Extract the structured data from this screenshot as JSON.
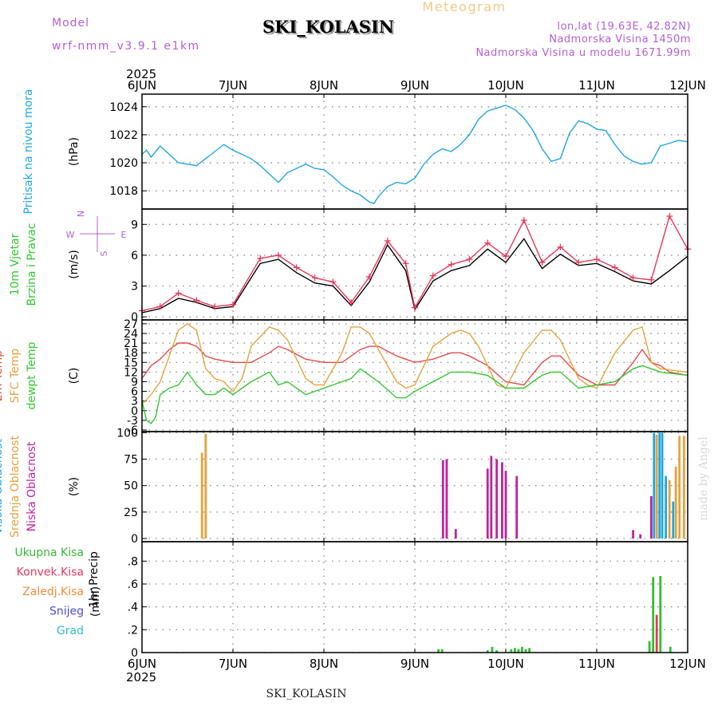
{
  "header": {
    "model_label": "Model",
    "model_name": "wrf-nmm_v3.9.1 e1km",
    "station": "SKI_KOLASIN",
    "meteogram_label": "Meteogram",
    "lonlat": "lon,lat (19.63E, 42.82N)",
    "altitude": "Nadmorska Visina 1450m",
    "model_altitude": "Nadmorska Visina u modelu 1671.99m"
  },
  "footer": {
    "station": "SKI_KOLASIN",
    "credit": "made by Angel"
  },
  "colors": {
    "pressure": "#1ea7e0",
    "wind_speed": "#000000",
    "gust": "#e8385a",
    "temp_2m": "#e84a4a",
    "temp_sfc": "#e6a23c",
    "dewpoint": "#2fc92f",
    "cloud_high": "#1ea7e0",
    "cloud_mid": "#e6a23c",
    "cloud_low": "#c0229c",
    "precip_total": "#33bb33",
    "precip_conv": "#e8385a",
    "grid": "#888888"
  },
  "chart_data": {
    "type": "line",
    "time_axis": {
      "year": "2025",
      "labels": [
        "6JUN",
        "7JUN",
        "8JUN",
        "9JUN",
        "10JUN",
        "11JUN",
        "12JUN"
      ],
      "start_day": 6,
      "end_day": 12
    },
    "panels": [
      {
        "id": "pressure",
        "ylabel": [
          "Pritisak na nivou mora"
        ],
        "ylabel_colors": [
          "#1ea7e0"
        ],
        "unit": "(hPa)",
        "ylim": [
          1016.7,
          1024.9
        ],
        "yticks": [
          1018,
          1020,
          1022,
          1024
        ],
        "series": [
          {
            "color_key": "pressure",
            "x": [
              6.0,
              6.05,
              6.1,
              6.2,
              6.3,
              6.4,
              6.5,
              6.6,
              6.7,
              6.8,
              6.9,
              7.0,
              7.1,
              7.2,
              7.3,
              7.4,
              7.5,
              7.6,
              7.7,
              7.8,
              7.9,
              8.0,
              8.1,
              8.2,
              8.3,
              8.4,
              8.5,
              8.55,
              8.6,
              8.7,
              8.8,
              8.9,
              9.0,
              9.1,
              9.2,
              9.3,
              9.4,
              9.5,
              9.6,
              9.7,
              9.8,
              9.9,
              10.0,
              10.1,
              10.2,
              10.3,
              10.4,
              10.5,
              10.6,
              10.7,
              10.8,
              10.9,
              11.0,
              11.1,
              11.2,
              11.3,
              11.4,
              11.5,
              11.6,
              11.7,
              11.8,
              11.9,
              12.0
            ],
            "values": [
              1020.6,
              1020.9,
              1020.4,
              1021.2,
              1020.6,
              1020.0,
              1019.9,
              1019.8,
              1020.3,
              1020.8,
              1021.3,
              1020.9,
              1020.6,
              1020.3,
              1019.8,
              1019.2,
              1018.6,
              1019.3,
              1019.6,
              1019.9,
              1019.6,
              1019.5,
              1019.0,
              1018.4,
              1018.0,
              1017.7,
              1017.2,
              1017.1,
              1017.6,
              1018.3,
              1018.6,
              1018.5,
              1018.9,
              1019.9,
              1020.6,
              1021.0,
              1020.8,
              1021.3,
              1022.0,
              1023.1,
              1023.7,
              1023.9,
              1024.1,
              1023.8,
              1023.2,
              1022.3,
              1021.0,
              1020.1,
              1020.3,
              1022.1,
              1023.0,
              1022.8,
              1022.4,
              1022.3,
              1021.3,
              1020.5,
              1020.1,
              1019.9,
              1020.0,
              1021.2,
              1021.4,
              1021.6,
              1021.5
            ]
          }
        ]
      },
      {
        "id": "wind",
        "ylabel": [
          "10m Vjetar",
          "Brzina i Pravac"
        ],
        "ylabel_colors": [
          "#2fc92f",
          "#2fc92f"
        ],
        "unit": "(m/s)",
        "direction_key": [
          "N",
          "W",
          "E",
          "S"
        ],
        "ylim": [
          -0.3,
          10.5
        ],
        "yticks": [
          0,
          3,
          6,
          9
        ],
        "series": [
          {
            "color_key": "wind_speed",
            "x": [
              6.0,
              6.2,
              6.4,
              6.6,
              6.8,
              7.0,
              7.3,
              7.5,
              7.7,
              7.9,
              8.1,
              8.3,
              8.5,
              8.7,
              8.9,
              9.0,
              9.2,
              9.4,
              9.6,
              9.8,
              10.0,
              10.2,
              10.4,
              10.6,
              10.8,
              11.0,
              11.2,
              11.4,
              11.6,
              11.8,
              12.0
            ],
            "values": [
              0.4,
              0.8,
              1.8,
              1.4,
              0.8,
              1.0,
              5.2,
              5.6,
              4.3,
              3.3,
              3.0,
              1.1,
              3.4,
              7.0,
              4.5,
              0.7,
              3.5,
              4.5,
              5.0,
              6.6,
              5.3,
              7.6,
              4.7,
              6.1,
              5.0,
              5.2,
              4.4,
              3.5,
              3.2,
              4.5,
              5.9
            ]
          },
          {
            "color_key": "gust",
            "x": [
              6.0,
              6.2,
              6.4,
              6.6,
              6.8,
              7.0,
              7.3,
              7.5,
              7.7,
              7.9,
              8.1,
              8.3,
              8.5,
              8.7,
              8.9,
              9.0,
              9.2,
              9.4,
              9.6,
              9.8,
              10.0,
              10.2,
              10.4,
              10.6,
              10.8,
              11.0,
              11.2,
              11.4,
              11.6,
              11.8,
              12.0
            ],
            "values": [
              0.6,
              1.0,
              2.3,
              1.6,
              1.0,
              1.2,
              5.7,
              6.0,
              4.8,
              3.8,
              3.4,
              1.4,
              3.9,
              7.4,
              5.2,
              0.9,
              4.0,
              5.1,
              5.6,
              7.2,
              5.9,
              9.4,
              5.3,
              6.8,
              5.3,
              5.6,
              4.8,
              3.8,
              3.6,
              9.8,
              6.6
            ]
          }
        ]
      },
      {
        "id": "temperature",
        "ylabel": [
          "2m Temp",
          "SFC Temp",
          "dewpt Temp"
        ],
        "ylabel_colors": [
          "#e84a4a",
          "#e6a23c",
          "#2fc92f"
        ],
        "unit": "(C)",
        "ylim": [
          -6.5,
          28.2
        ],
        "yticks": [
          -6,
          -3,
          0,
          3,
          6,
          9,
          12,
          15,
          18,
          21,
          24,
          27
        ],
        "series": [
          {
            "color_key": "temp_2m",
            "x": [
              6.0,
              6.1,
              6.2,
              6.3,
              6.4,
              6.5,
              6.6,
              6.7,
              6.8,
              7.0,
              7.2,
              7.4,
              7.5,
              7.6,
              7.8,
              8.0,
              8.2,
              8.4,
              8.5,
              8.6,
              8.8,
              9.0,
              9.2,
              9.4,
              9.5,
              9.6,
              9.8,
              10.0,
              10.2,
              10.4,
              10.5,
              10.6,
              10.8,
              11.0,
              11.2,
              11.4,
              11.5,
              11.6,
              11.7,
              11.8,
              12.0
            ],
            "values": [
              10,
              14,
              16,
              19,
              21,
              21,
              20,
              17,
              16,
              15,
              15,
              18,
              20,
              19,
              16,
              15,
              15,
              19,
              20,
              20,
              17,
              15,
              16,
              18,
              18,
              17,
              14,
              9,
              8,
              15,
              17,
              17,
              11,
              8,
              8,
              15,
              19,
              15,
              14,
              12,
              11
            ]
          },
          {
            "color_key": "temp_sfc",
            "x": [
              6.0,
              6.1,
              6.2,
              6.3,
              6.4,
              6.5,
              6.6,
              6.7,
              6.8,
              6.9,
              7.0,
              7.1,
              7.2,
              7.4,
              7.5,
              7.6,
              7.8,
              7.9,
              8.0,
              8.2,
              8.3,
              8.4,
              8.5,
              8.6,
              8.8,
              8.9,
              9.0,
              9.2,
              9.4,
              9.5,
              9.6,
              9.7,
              9.9,
              10.0,
              10.2,
              10.4,
              10.5,
              10.6,
              10.8,
              10.9,
              11.0,
              11.2,
              11.4,
              11.5,
              11.6,
              11.7,
              12.0
            ],
            "values": [
              2,
              5,
              9,
              17,
              25,
              27,
              25,
              13,
              10,
              9,
              6,
              10,
              20,
              26,
              25,
              22,
              10,
              8,
              8,
              18,
              26,
              26,
              24,
              19,
              9,
              7,
              8,
              20,
              24,
              25,
              24,
              20,
              8,
              7,
              18,
              25,
              25,
              22,
              10,
              8,
              7,
              18,
              25,
              26,
              15,
              13,
              12
            ]
          },
          {
            "color_key": "dewpoint",
            "x": [
              6.0,
              6.05,
              6.1,
              6.15,
              6.2,
              6.3,
              6.4,
              6.5,
              6.6,
              6.7,
              6.8,
              6.9,
              7.0,
              7.2,
              7.4,
              7.5,
              7.6,
              7.8,
              8.0,
              8.2,
              8.3,
              8.4,
              8.5,
              8.6,
              8.8,
              8.9,
              9.0,
              9.2,
              9.4,
              9.5,
              9.6,
              9.8,
              10.0,
              10.2,
              10.4,
              10.5,
              10.6,
              10.8,
              11.0,
              11.2,
              11.4,
              11.5,
              11.6,
              11.7,
              12.0
            ],
            "values": [
              3,
              -3,
              -4,
              -2,
              5,
              7,
              8,
              12,
              8,
              5,
              5,
              7,
              5,
              9,
              12,
              8,
              9,
              5,
              7,
              9,
              10,
              13,
              11,
              9,
              4,
              4,
              6,
              9,
              12,
              12,
              12,
              11,
              7,
              7,
              11,
              12,
              12,
              7,
              8,
              9,
              13,
              14,
              13,
              12,
              11
            ]
          }
        ]
      },
      {
        "id": "clouds",
        "ylabel": [
          "Visoka Oblacnost",
          "Srednja Oblacnost",
          "Niska Oblacnost"
        ],
        "ylabel_colors": [
          "#1ea7e0",
          "#e6a23c",
          "#c0229c"
        ],
        "unit": "(%)",
        "ylim": [
          -3,
          101
        ],
        "yticks": [
          0,
          25,
          50,
          75,
          100
        ],
        "bars": [
          {
            "x": 6.66,
            "value": 81,
            "color_key": "cloud_mid"
          },
          {
            "x": 6.7,
            "value": 99,
            "color_key": "cloud_mid"
          },
          {
            "x": 9.31,
            "value": 74,
            "color_key": "cloud_low"
          },
          {
            "x": 9.35,
            "value": 75,
            "color_key": "cloud_low"
          },
          {
            "x": 9.45,
            "value": 9,
            "color_key": "cloud_low"
          },
          {
            "x": 9.8,
            "value": 66,
            "color_key": "cloud_low"
          },
          {
            "x": 9.84,
            "value": 78,
            "color_key": "cloud_low"
          },
          {
            "x": 9.9,
            "value": 75,
            "color_key": "cloud_low"
          },
          {
            "x": 9.96,
            "value": 72,
            "color_key": "cloud_low"
          },
          {
            "x": 10.0,
            "value": 64,
            "color_key": "cloud_low"
          },
          {
            "x": 10.12,
            "value": 59,
            "color_key": "cloud_low"
          },
          {
            "x": 11.4,
            "value": 8,
            "color_key": "cloud_low"
          },
          {
            "x": 11.48,
            "value": 4,
            "color_key": "cloud_low"
          },
          {
            "x": 11.6,
            "value": 40,
            "color_key": "cloud_low"
          },
          {
            "x": 11.63,
            "value": 100,
            "color_key": "cloud_high"
          },
          {
            "x": 11.66,
            "value": 98,
            "color_key": "cloud_mid"
          },
          {
            "x": 11.69,
            "value": 100,
            "color_key": "cloud_high"
          },
          {
            "x": 11.72,
            "value": 100,
            "color_key": "cloud_high"
          },
          {
            "x": 11.76,
            "value": 59,
            "color_key": "cloud_high"
          },
          {
            "x": 11.8,
            "value": 55,
            "color_key": "cloud_mid"
          },
          {
            "x": 11.84,
            "value": 35,
            "color_key": "cloud_high"
          },
          {
            "x": 11.87,
            "value": 68,
            "color_key": "cloud_mid"
          },
          {
            "x": 11.91,
            "value": 97,
            "color_key": "cloud_mid"
          },
          {
            "x": 11.96,
            "value": 97,
            "color_key": "cloud_mid"
          }
        ]
      },
      {
        "id": "precip",
        "ylabel": [
          "1hr Precip"
        ],
        "ylabel_colors": [
          "#000000"
        ],
        "unit": "(mm)",
        "ylim": [
          0,
          0.97
        ],
        "yticks": [
          0,
          0.2,
          0.4,
          0.6,
          0.8
        ],
        "legend": [
          {
            "label": "Ukupna Kisa",
            "color_key": "precip_total"
          },
          {
            "label": "Konvek.Kisa",
            "color_key": "precip_conv"
          },
          {
            "label": "Zaledj.Kisa",
            "color": "#f58a3a"
          },
          {
            "label": "Snijeg",
            "color": "#4b4bd6"
          },
          {
            "label": "Grad",
            "color": "#2fc0c0"
          }
        ],
        "bars": [
          {
            "x": 9.26,
            "value": 0.03,
            "color_key": "precip_total"
          },
          {
            "x": 9.3,
            "value": 0.03,
            "color_key": "precip_total"
          },
          {
            "x": 9.8,
            "value": 0.02,
            "color_key": "precip_total"
          },
          {
            "x": 9.85,
            "value": 0.05,
            "color_key": "precip_total"
          },
          {
            "x": 9.9,
            "value": 0.02,
            "color_key": "precip_total"
          },
          {
            "x": 10.06,
            "value": 0.03,
            "color_key": "precip_total"
          },
          {
            "x": 10.1,
            "value": 0.04,
            "color_key": "precip_total"
          },
          {
            "x": 10.14,
            "value": 0.03,
            "color_key": "precip_total"
          },
          {
            "x": 10.18,
            "value": 0.05,
            "color_key": "precip_total"
          },
          {
            "x": 10.22,
            "value": 0.03,
            "color_key": "precip_total"
          },
          {
            "x": 10.26,
            "value": 0.04,
            "color_key": "precip_total"
          },
          {
            "x": 11.58,
            "value": 0.1,
            "color_key": "precip_total"
          },
          {
            "x": 11.62,
            "value": 0.66,
            "color_key": "precip_total"
          },
          {
            "x": 11.66,
            "value": 0.33,
            "color_key": "precip_conv"
          },
          {
            "x": 11.7,
            "value": 0.67,
            "color_key": "precip_total"
          },
          {
            "x": 11.81,
            "value": 0.05,
            "color_key": "precip_total"
          }
        ]
      }
    ]
  }
}
